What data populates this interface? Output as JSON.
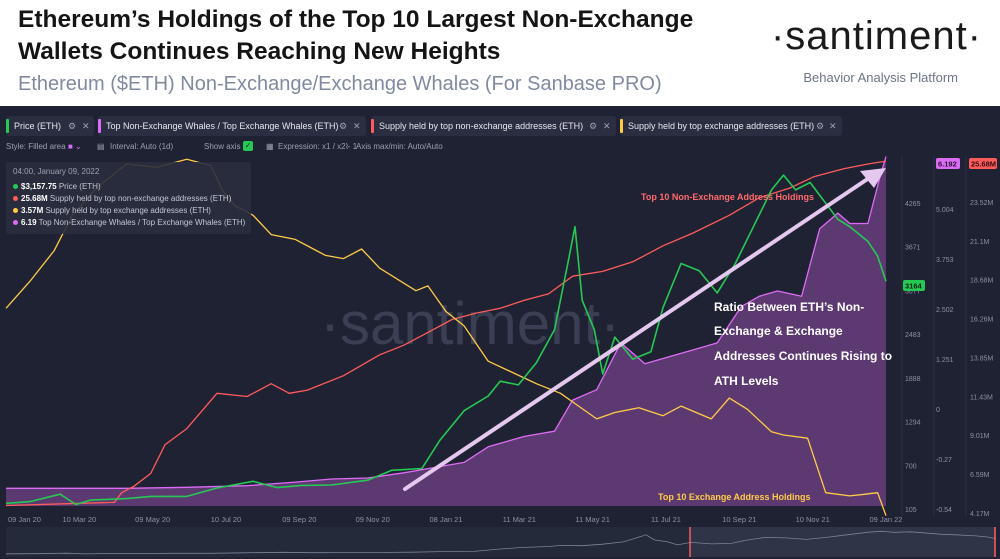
{
  "header": {
    "title_line1": "Ethereum’s Holdings of the Top 10 Largest Non-Exchange",
    "title_line2": "Wallets Continues Reaching New Heights",
    "subtitle": "Ethereum ($ETH) Non-Exchange/Exchange Whales (For Sanbase PRO)",
    "logo": "·santiment·",
    "tagline": "Behavior Analysis Platform"
  },
  "legend": [
    {
      "label": "Price (ETH)",
      "color": "#26c953"
    },
    {
      "label": "Top Non-Exchange Whales / Top Exchange Whales (ETH)",
      "color": "#dc6cf5"
    },
    {
      "label": "Supply held by top non-exchange addresses (ETH)",
      "color": "#ff5b5b"
    },
    {
      "label": "Supply held by top exchange addresses (ETH)",
      "color": "#ffcb47"
    }
  ],
  "toolbar": {
    "style": "Style: Filled area",
    "interval": "Interval: Auto (1d)",
    "show_axis": "Show axis",
    "expression": "Expression: x1 / x2 - 1",
    "axis_minmax": "Axis max/min: Auto/Auto"
  },
  "tooltip": {
    "date": "04:00, January 09, 2022",
    "rows": [
      {
        "value": "$3,157.75",
        "label": "Price (ETH)",
        "color": "#26c953"
      },
      {
        "value": "25.68M",
        "label": "Supply held by top non-exchange addresses (ETH)",
        "color": "#ff5b5b"
      },
      {
        "value": "3.57M",
        "label": "Supply held by top exchange addresses (ETH)",
        "color": "#ffcb47"
      },
      {
        "value": "6.19",
        "label": "Top Non-Exchange Whales / Top Exchange Whales (ETH)",
        "color": "#dc6cf5"
      }
    ]
  },
  "watermark": "·santiment·",
  "annotations": {
    "non_exchange_label": "Top 10 Non-Exchange Address Holdings",
    "exchange_label": "Top 10 Exchange Address Holdings",
    "ratio_line1": "Ratio Between ETH’s Non-",
    "ratio_line2": "Exchange & Exchange",
    "ratio_line3": "Addresses Continues Rising to",
    "ratio_line4": "ATH Levels"
  },
  "badges": {
    "price": "3164",
    "ratio": "6.192",
    "supply": "25.68M"
  },
  "colors": {
    "price": "#26c953",
    "ratio": "#dc6cf5",
    "non_exchange": "#ff5b5b",
    "exchange": "#ffcb47",
    "background": "#1f2233"
  },
  "chart_data": {
    "type": "line",
    "title": "Ethereum ($ETH) Non-Exchange/Exchange Whales",
    "x_ticks": [
      "09 Jan 20",
      "10 Mar 20",
      "09 May 20",
      "10 Jul 20",
      "09 Sep 20",
      "09 Nov 20",
      "08 Jan 21",
      "11 Mar 21",
      "11 May 21",
      "11 Jul 21",
      "10 Sep 21",
      "10 Nov 21",
      "09 Jan 22"
    ],
    "x_start": 0,
    "x_end": 730,
    "axes": {
      "price": {
        "ticks": [
          "4860",
          "4265",
          "3671",
          "3077",
          "2483",
          "1888",
          "1294",
          "700",
          "105"
        ],
        "min": 105,
        "max": 4860
      },
      "ratio": {
        "ticks": [
          "6.193",
          "5.004",
          "3.753",
          "2.502",
          "1.251",
          "0",
          "-0.27",
          "-0.54"
        ],
        "min": -0.54,
        "max": 6.2
      },
      "supply": {
        "ticks": [
          "25.68M",
          "23.52M",
          "21.1M",
          "18.68M",
          "16.26M",
          "13.85M",
          "11.43M",
          "9.01M",
          "6.59M",
          "4.17M"
        ],
        "min": 4.17,
        "max": 26.0
      }
    },
    "series": [
      {
        "name": "Price (ETH)",
        "axis": "price",
        "points": [
          [
            0,
            140
          ],
          [
            20,
            165
          ],
          [
            45,
            265
          ],
          [
            58,
            125
          ],
          [
            70,
            185
          ],
          [
            100,
            205
          ],
          [
            120,
            235
          ],
          [
            150,
            235
          ],
          [
            175,
            350
          ],
          [
            205,
            440
          ],
          [
            225,
            355
          ],
          [
            245,
            385
          ],
          [
            270,
            390
          ],
          [
            300,
            455
          ],
          [
            320,
            590
          ],
          [
            345,
            615
          ],
          [
            360,
            1000
          ],
          [
            380,
            1400
          ],
          [
            400,
            1600
          ],
          [
            410,
            1800
          ],
          [
            425,
            1750
          ],
          [
            440,
            2050
          ],
          [
            455,
            2500
          ],
          [
            466,
            3400
          ],
          [
            472,
            3900
          ],
          [
            478,
            2900
          ],
          [
            488,
            2500
          ],
          [
            495,
            1900
          ],
          [
            505,
            2400
          ],
          [
            520,
            2100
          ],
          [
            535,
            2200
          ],
          [
            545,
            2800
          ],
          [
            560,
            3400
          ],
          [
            575,
            3300
          ],
          [
            590,
            3000
          ],
          [
            605,
            3400
          ],
          [
            620,
            3900
          ],
          [
            635,
            4400
          ],
          [
            645,
            4600
          ],
          [
            655,
            4400
          ],
          [
            667,
            4500
          ],
          [
            690,
            4000
          ],
          [
            700,
            3900
          ],
          [
            715,
            3700
          ],
          [
            723,
            3500
          ],
          [
            730,
            3158
          ]
        ]
      },
      {
        "name": "Supply held by top non-exchange addresses (ETH)",
        "axis": "supply",
        "points": [
          [
            0,
            4.2
          ],
          [
            90,
            4.4
          ],
          [
            96,
            5.0
          ],
          [
            106,
            5.4
          ],
          [
            120,
            6.2
          ],
          [
            132,
            8.0
          ],
          [
            150,
            9.0
          ],
          [
            175,
            11.2
          ],
          [
            200,
            11.0
          ],
          [
            220,
            11.8
          ],
          [
            235,
            11.2
          ],
          [
            250,
            11.4
          ],
          [
            280,
            12.3
          ],
          [
            310,
            13.6
          ],
          [
            330,
            14.2
          ],
          [
            350,
            15.0
          ],
          [
            370,
            15.8
          ],
          [
            390,
            16.2
          ],
          [
            410,
            16.5
          ],
          [
            430,
            17.0
          ],
          [
            450,
            17.4
          ],
          [
            470,
            18.5
          ],
          [
            495,
            18.8
          ],
          [
            520,
            19.4
          ],
          [
            545,
            20.4
          ],
          [
            570,
            21.2
          ],
          [
            600,
            22.3
          ],
          [
            625,
            23.4
          ],
          [
            650,
            24.0
          ],
          [
            670,
            24.7
          ],
          [
            695,
            25.2
          ],
          [
            715,
            25.5
          ],
          [
            730,
            25.68
          ]
        ]
      },
      {
        "name": "Supply held by top exchange addresses (ETH)",
        "axis": "supply",
        "points": [
          [
            0,
            16.5
          ],
          [
            20,
            18.2
          ],
          [
            40,
            20.1
          ],
          [
            55,
            22.3
          ],
          [
            75,
            24.0
          ],
          [
            100,
            25.5
          ],
          [
            125,
            25.3
          ],
          [
            150,
            25.8
          ],
          [
            170,
            25.4
          ],
          [
            180,
            23.8
          ],
          [
            190,
            22.9
          ],
          [
            205,
            22.3
          ],
          [
            220,
            21.1
          ],
          [
            240,
            20.8
          ],
          [
            255,
            20.2
          ],
          [
            265,
            19.8
          ],
          [
            280,
            19.6
          ],
          [
            295,
            20.2
          ],
          [
            310,
            19.0
          ],
          [
            340,
            17.6
          ],
          [
            350,
            17.9
          ],
          [
            365,
            16.3
          ],
          [
            380,
            15.4
          ],
          [
            400,
            13.2
          ],
          [
            420,
            12.5
          ],
          [
            440,
            11.8
          ],
          [
            460,
            11.2
          ],
          [
            475,
            10.4
          ],
          [
            490,
            9.6
          ],
          [
            505,
            10.0
          ],
          [
            525,
            10.3
          ],
          [
            545,
            9.8
          ],
          [
            560,
            10.4
          ],
          [
            585,
            9.6
          ],
          [
            600,
            10.9
          ],
          [
            615,
            10.2
          ],
          [
            635,
            8.8
          ],
          [
            645,
            8.6
          ],
          [
            665,
            8.4
          ],
          [
            680,
            5.0
          ],
          [
            700,
            4.8
          ],
          [
            712,
            4.9
          ],
          [
            723,
            5.0
          ],
          [
            730,
            3.57
          ]
        ]
      },
      {
        "name": "Top Non-Exchange Whales / Top Exchange Whales (ETH)",
        "axis": "ratio",
        "points": [
          [
            0,
            -0.2
          ],
          [
            100,
            -0.2
          ],
          [
            150,
            -0.18
          ],
          [
            200,
            -0.15
          ],
          [
            240,
            -0.08
          ],
          [
            270,
            -0.02
          ],
          [
            300,
            0.0
          ],
          [
            330,
            0.1
          ],
          [
            350,
            0.18
          ],
          [
            380,
            0.3
          ],
          [
            400,
            0.6
          ],
          [
            430,
            0.8
          ],
          [
            455,
            0.9
          ],
          [
            470,
            1.5
          ],
          [
            490,
            1.7
          ],
          [
            510,
            2.6
          ],
          [
            530,
            2.2
          ],
          [
            545,
            2.3
          ],
          [
            575,
            2.5
          ],
          [
            590,
            2.6
          ],
          [
            610,
            3.3
          ],
          [
            625,
            3.5
          ],
          [
            640,
            3.6
          ],
          [
            660,
            3.5
          ],
          [
            675,
            4.8
          ],
          [
            690,
            5.1
          ],
          [
            700,
            4.9
          ],
          [
            715,
            4.9
          ],
          [
            725,
            5.8
          ],
          [
            730,
            6.19
          ]
        ]
      }
    ]
  }
}
